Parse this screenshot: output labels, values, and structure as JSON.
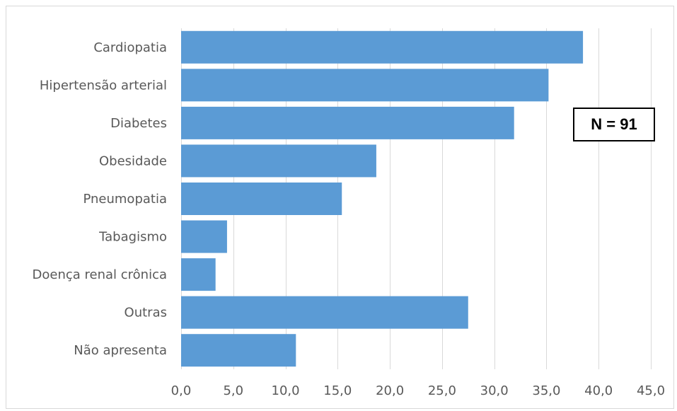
{
  "chart_data": {
    "type": "bar",
    "orientation": "horizontal",
    "categories": [
      "Cardiopatia",
      "Hipertensão arterial",
      "Diabetes",
      "Obesidade",
      "Pneumopatia",
      "Tabagismo",
      "Doença renal crônica",
      "Outras",
      "Não apresenta"
    ],
    "values": [
      38.5,
      35.2,
      31.9,
      18.7,
      15.4,
      4.4,
      3.3,
      27.5,
      11.0
    ],
    "xlim": [
      0,
      45
    ],
    "xticks": [
      "0,0",
      "5,0",
      "10,0",
      "15,0",
      "20,0",
      "25,0",
      "30,0",
      "35,0",
      "40,0",
      "45,0"
    ],
    "grid": true,
    "bar_color": "#5b9bd5",
    "annotation": "N = 91"
  }
}
